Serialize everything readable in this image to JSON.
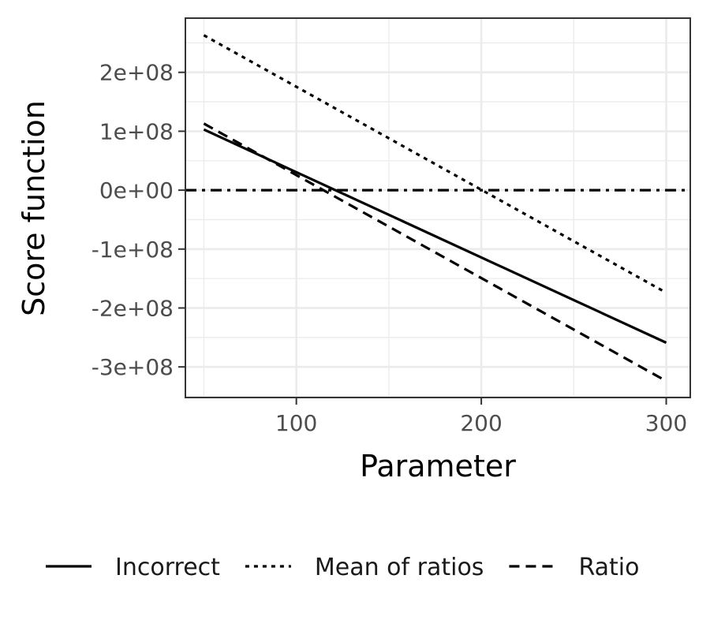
{
  "chart_data": {
    "type": "line",
    "xlabel": "Parameter",
    "ylabel": "Score function",
    "xlim": [
      40,
      313
    ],
    "ylim": [
      -352000000,
      292000000
    ],
    "x_ticks": [
      100,
      200,
      300
    ],
    "x_tick_labels": [
      "100",
      "200",
      "300"
    ],
    "y_ticks": [
      200000000,
      100000000,
      0,
      -100000000,
      -200000000,
      -300000000
    ],
    "y_tick_labels": [
      "2e+08",
      "1e+08",
      "0e+00",
      "-1e+08",
      "-2e+08",
      "-3e+08"
    ],
    "grid": true,
    "legend_position": "bottom",
    "reference_line": {
      "y": 0,
      "style": "dashdot"
    },
    "series": [
      {
        "name": "Incorrect",
        "style": "solid",
        "color": "#000000",
        "x": [
          50,
          300
        ],
        "y": [
          103000000,
          -259000000
        ]
      },
      {
        "name": "Mean of ratios",
        "style": "dotted",
        "color": "#000000",
        "x": [
          50,
          300
        ],
        "y": [
          263000000,
          -174000000
        ]
      },
      {
        "name": "Ratio",
        "style": "dashed",
        "color": "#000000",
        "x": [
          50,
          300
        ],
        "y": [
          113000000,
          -324000000
        ]
      }
    ]
  }
}
